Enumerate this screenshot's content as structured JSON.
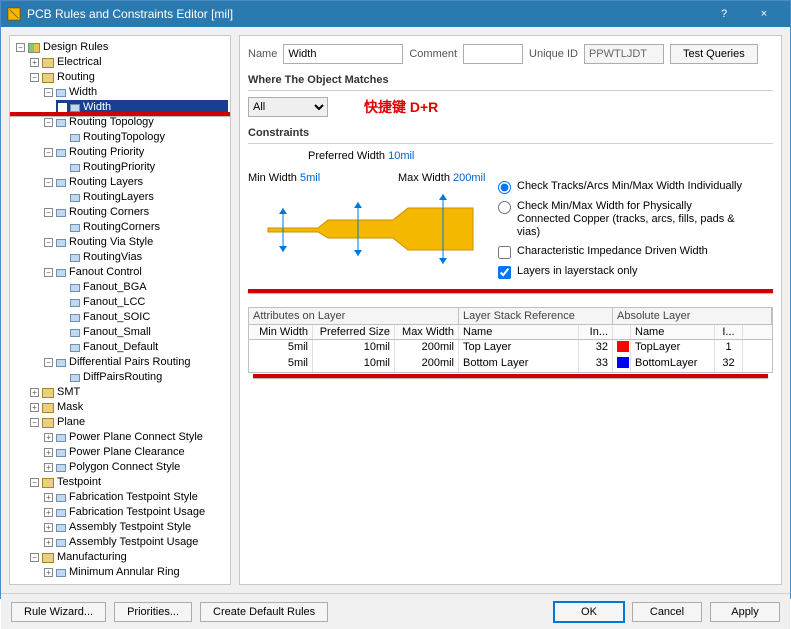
{
  "title": "PCB Rules and Constraints Editor [mil]",
  "winbtns": {
    "help": "?",
    "close": "×"
  },
  "tree": {
    "root": "Design Rules",
    "electrical": "Electrical",
    "routing": "Routing",
    "width": "Width",
    "width_leaf": "Width",
    "rtop": "Routing Topology",
    "rtop_leaf": "RoutingTopology",
    "rprio": "Routing Priority",
    "rprio_leaf": "RoutingPriority",
    "rlay": "Routing Layers",
    "rlay_leaf": "RoutingLayers",
    "rcor": "Routing Corners",
    "rcor_leaf": "RoutingCorners",
    "rvia": "Routing Via Style",
    "rvia_leaf": "RoutingVias",
    "fanout": "Fanout Control",
    "f_bga": "Fanout_BGA",
    "f_lcc": "Fanout_LCC",
    "f_soic": "Fanout_SOIC",
    "f_small": "Fanout_Small",
    "f_def": "Fanout_Default",
    "diff": "Differential Pairs Routing",
    "diff_leaf": "DiffPairsRouting",
    "smt": "SMT",
    "mask": "Mask",
    "plane": "Plane",
    "ppc": "Power Plane Connect Style",
    "ppcl": "Power Plane Clearance",
    "poly": "Polygon Connect Style",
    "testpoint": "Testpoint",
    "fts": "Fabrication Testpoint Style",
    "ftu": "Fabrication Testpoint Usage",
    "ats": "Assembly Testpoint Style",
    "atu": "Assembly Testpoint Usage",
    "mfg": "Manufacturing",
    "mar": "Minimum Annular Ring"
  },
  "form": {
    "name_lbl": "Name",
    "name_val": "Width",
    "comment_lbl": "Comment",
    "comment_val": "",
    "uid_lbl": "Unique ID",
    "uid_val": "PPWTLJDT",
    "testq": "Test Queries"
  },
  "match": {
    "label": "Where The Object Matches",
    "all": "All"
  },
  "shortcut": "快捷键 D+R",
  "constraints": {
    "label": "Constraints",
    "pref_lbl": "Preferred Width",
    "pref_val": "10mil",
    "min_lbl": "Min Width",
    "min_val": "5mil",
    "max_lbl": "Max Width",
    "max_val": "200mil",
    "r1": "Check Tracks/Arcs Min/Max Width Individually",
    "r2": "Check Min/Max Width for Physically Connected Copper (tracks, arcs, fills, pads & vias)",
    "c1": "Characteristic Impedance Driven Width",
    "c2": "Layers in layerstack only"
  },
  "table": {
    "sec1": "Attributes on Layer",
    "sec2": "Layer Stack Reference",
    "sec3": "Absolute Layer",
    "h_min": "Min Width",
    "h_pref": "Preferred Size",
    "h_max": "Max Width",
    "h_name": "Name",
    "h_idx": "In...",
    "h_aname": "Name",
    "h_aidx": "I...",
    "rows": [
      {
        "min": "5mil",
        "pref": "10mil",
        "max": "200mil",
        "name": "Top Layer",
        "idx": "32",
        "color": "#ff0000",
        "aname": "TopLayer",
        "aidx": "1"
      },
      {
        "min": "5mil",
        "pref": "10mil",
        "max": "200mil",
        "name": "Bottom Layer",
        "idx": "33",
        "color": "#0000ff",
        "aname": "BottomLayer",
        "aidx": "32"
      }
    ]
  },
  "footer": {
    "wiz": "Rule Wizard...",
    "prio": "Priorities...",
    "cdr": "Create Default Rules",
    "ok": "OK",
    "cancel": "Cancel",
    "apply": "Apply"
  }
}
